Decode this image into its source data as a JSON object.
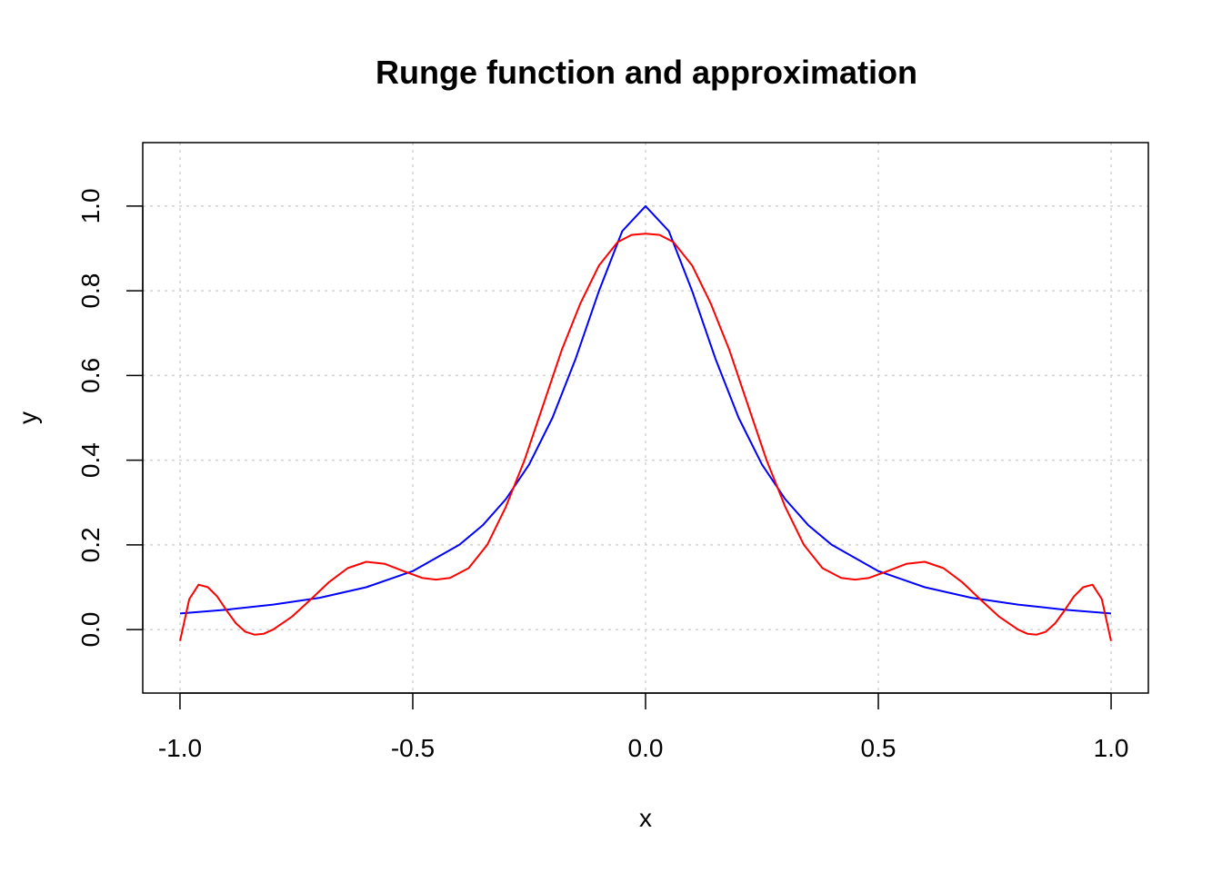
{
  "chart_data": {
    "type": "line",
    "title": "Runge function and approximation",
    "xlabel": "x",
    "ylabel": "y",
    "xlim": [
      -1.08,
      1.08
    ],
    "ylim": [
      -0.15,
      1.15
    ],
    "x_ticks": [
      -1.0,
      -0.5,
      0.0,
      0.5,
      1.0
    ],
    "x_tick_labels": [
      "-1.0",
      "-0.5",
      "0.0",
      "0.5",
      "1.0"
    ],
    "y_ticks": [
      0.0,
      0.2,
      0.4,
      0.6,
      0.8,
      1.0
    ],
    "y_tick_labels": [
      "0.0",
      "0.2",
      "0.4",
      "0.6",
      "0.8",
      "1.0"
    ],
    "grid": true,
    "series": [
      {
        "color": "#0000ff",
        "x": [
          -1.0,
          -0.9,
          -0.8,
          -0.7,
          -0.6,
          -0.5,
          -0.4,
          -0.35,
          -0.3,
          -0.25,
          -0.2,
          -0.15,
          -0.1,
          -0.05,
          0.0,
          0.05,
          0.1,
          0.15,
          0.2,
          0.25,
          0.3,
          0.35,
          0.4,
          0.5,
          0.6,
          0.7,
          0.8,
          0.9,
          1.0
        ],
        "values": [
          0.038,
          0.047,
          0.059,
          0.075,
          0.1,
          0.138,
          0.2,
          0.246,
          0.308,
          0.39,
          0.5,
          0.64,
          0.8,
          0.941,
          1.0,
          0.941,
          0.8,
          0.64,
          0.5,
          0.39,
          0.308,
          0.246,
          0.2,
          0.138,
          0.1,
          0.075,
          0.059,
          0.047,
          0.038
        ]
      },
      {
        "color": "#ff0000",
        "x": [
          -1.0,
          -0.98,
          -0.96,
          -0.94,
          -0.92,
          -0.9,
          -0.88,
          -0.86,
          -0.84,
          -0.82,
          -0.8,
          -0.76,
          -0.72,
          -0.68,
          -0.64,
          -0.6,
          -0.56,
          -0.52,
          -0.48,
          -0.45,
          -0.42,
          -0.38,
          -0.34,
          -0.3,
          -0.26,
          -0.22,
          -0.18,
          -0.14,
          -0.1,
          -0.06,
          -0.03,
          0.0,
          0.03,
          0.06,
          0.1,
          0.14,
          0.18,
          0.22,
          0.26,
          0.3,
          0.34,
          0.38,
          0.42,
          0.45,
          0.48,
          0.52,
          0.56,
          0.6,
          0.64,
          0.68,
          0.72,
          0.76,
          0.8,
          0.82,
          0.84,
          0.86,
          0.88,
          0.9,
          0.92,
          0.94,
          0.96,
          0.98,
          1.0
        ],
        "values": [
          -0.027,
          0.072,
          0.106,
          0.1,
          0.078,
          0.045,
          0.015,
          -0.005,
          -0.012,
          -0.01,
          0.0,
          0.03,
          0.07,
          0.112,
          0.145,
          0.16,
          0.155,
          0.138,
          0.122,
          0.118,
          0.122,
          0.145,
          0.2,
          0.29,
          0.4,
          0.53,
          0.66,
          0.77,
          0.86,
          0.915,
          0.932,
          0.935,
          0.932,
          0.915,
          0.86,
          0.77,
          0.66,
          0.53,
          0.4,
          0.29,
          0.2,
          0.145,
          0.122,
          0.118,
          0.122,
          0.138,
          0.155,
          0.16,
          0.145,
          0.112,
          0.07,
          0.03,
          0.0,
          -0.01,
          -0.012,
          -0.005,
          0.015,
          0.045,
          0.078,
          0.1,
          0.106,
          0.072,
          -0.027
        ]
      }
    ]
  }
}
